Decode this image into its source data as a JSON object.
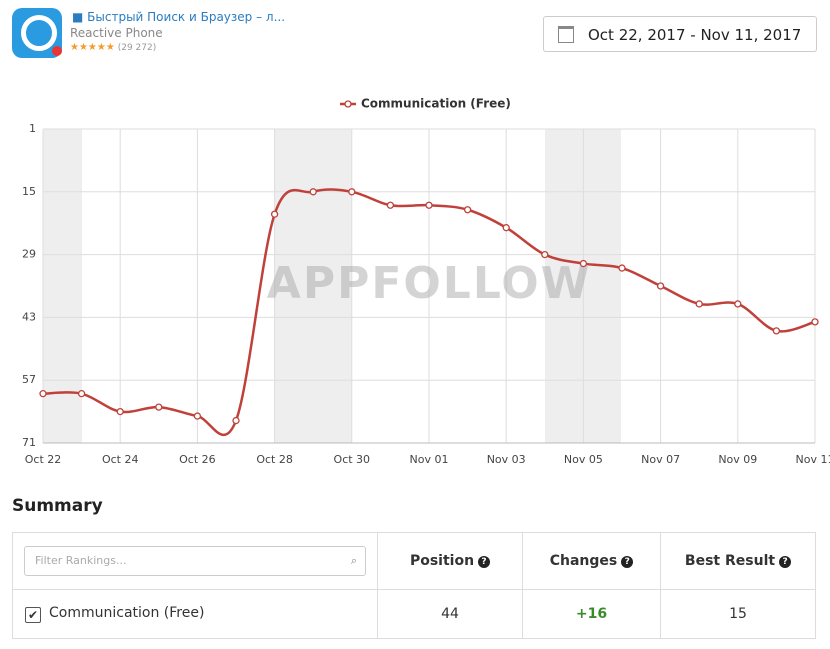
{
  "header": {
    "app_name": "Быстрый Поиск и Браузер – л...",
    "developer": "Reactive Phone",
    "rating_count": "(29 272)",
    "date_range": "Oct 22, 2017 - Nov 11, 2017"
  },
  "chart_data": {
    "type": "line",
    "watermark": "APPFOLLOW",
    "categories": [
      "Oct 22",
      null,
      "Oct 24",
      null,
      "Oct 26",
      null,
      "Oct 28",
      null,
      "Oct 30",
      null,
      "Nov 01",
      null,
      "Nov 03",
      null,
      "Nov 05",
      null,
      "Nov 07",
      null,
      "Nov 09",
      null,
      "Nov 11"
    ],
    "series": [
      {
        "name": "Communication (Free)",
        "color": "#c0403a",
        "values": [
          60,
          60,
          64,
          63,
          65,
          66,
          20,
          15,
          15,
          18,
          18,
          19,
          23,
          29,
          31,
          32,
          36,
          40,
          40,
          46,
          44
        ]
      }
    ],
    "ylim": [
      71,
      1
    ],
    "yticks": [
      1,
      15,
      29,
      43,
      57,
      71
    ],
    "grid": true,
    "legend": "top"
  },
  "summary": {
    "title": "Summary",
    "filter_placeholder": "Filter Rankings...",
    "columns": [
      "Position",
      "Changes",
      "Best Result"
    ],
    "rows": [
      [
        "Communication (Free)",
        "44",
        "+16",
        "15"
      ]
    ]
  }
}
